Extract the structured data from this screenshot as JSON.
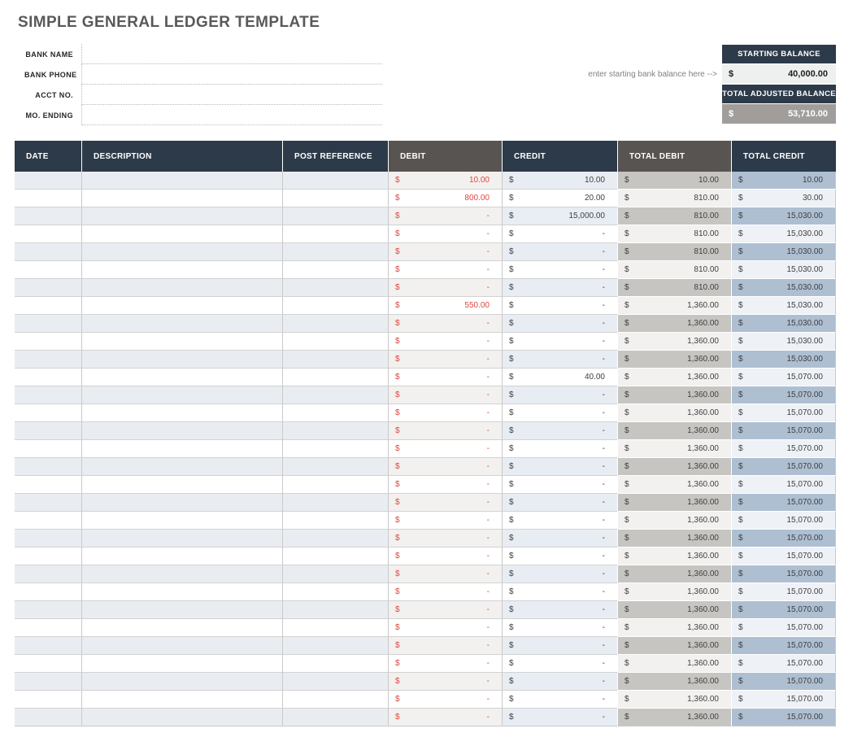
{
  "page": {
    "title": "SIMPLE GENERAL LEDGER TEMPLATE"
  },
  "account_form": {
    "fields": [
      {
        "label": "BANK NAME",
        "value": ""
      },
      {
        "label": "BANK PHONE",
        "value": ""
      },
      {
        "label": "ACCT NO.",
        "value": ""
      },
      {
        "label": "MO. ENDING",
        "value": ""
      }
    ]
  },
  "balance_panel": {
    "hint": "enter starting bank balance here -->",
    "starting": {
      "label": "STARTING BALANCE",
      "currency": "$",
      "value": "40,000.00"
    },
    "adjusted": {
      "label": "TOTAL ADJUSTED BALANCE",
      "currency": "$",
      "value": "53,710.00"
    }
  },
  "ledger": {
    "columns": [
      "DATE",
      "DESCRIPTION",
      "POST REFERENCE",
      "DEBIT",
      "CREDIT",
      "TOTAL DEBIT",
      "TOTAL CREDIT"
    ],
    "currency": "$",
    "rows": [
      {
        "date": "",
        "description": "",
        "post_reference": "",
        "debit": "10.00",
        "credit": "10.00",
        "total_debit": "10.00",
        "total_credit": "10.00"
      },
      {
        "date": "",
        "description": "",
        "post_reference": "",
        "debit": "800.00",
        "credit": "20.00",
        "total_debit": "810.00",
        "total_credit": "30.00"
      },
      {
        "date": "",
        "description": "",
        "post_reference": "",
        "debit": "-",
        "credit": "15,000.00",
        "total_debit": "810.00",
        "total_credit": "15,030.00"
      },
      {
        "date": "",
        "description": "",
        "post_reference": "",
        "debit": "-",
        "credit": "-",
        "total_debit": "810.00",
        "total_credit": "15,030.00"
      },
      {
        "date": "",
        "description": "",
        "post_reference": "",
        "debit": "-",
        "credit": "-",
        "total_debit": "810.00",
        "total_credit": "15,030.00"
      },
      {
        "date": "",
        "description": "",
        "post_reference": "",
        "debit": "-",
        "credit": "-",
        "total_debit": "810.00",
        "total_credit": "15,030.00"
      },
      {
        "date": "",
        "description": "",
        "post_reference": "",
        "debit": "-",
        "credit": "-",
        "total_debit": "810.00",
        "total_credit": "15,030.00"
      },
      {
        "date": "",
        "description": "",
        "post_reference": "",
        "debit": "550.00",
        "credit": "-",
        "total_debit": "1,360.00",
        "total_credit": "15,030.00"
      },
      {
        "date": "",
        "description": "",
        "post_reference": "",
        "debit": "-",
        "credit": "-",
        "total_debit": "1,360.00",
        "total_credit": "15,030.00"
      },
      {
        "date": "",
        "description": "",
        "post_reference": "",
        "debit": "-",
        "credit": "-",
        "total_debit": "1,360.00",
        "total_credit": "15,030.00"
      },
      {
        "date": "",
        "description": "",
        "post_reference": "",
        "debit": "-",
        "credit": "-",
        "total_debit": "1,360.00",
        "total_credit": "15,030.00"
      },
      {
        "date": "",
        "description": "",
        "post_reference": "",
        "debit": "-",
        "credit": "40.00",
        "total_debit": "1,360.00",
        "total_credit": "15,070.00"
      },
      {
        "date": "",
        "description": "",
        "post_reference": "",
        "debit": "-",
        "credit": "-",
        "total_debit": "1,360.00",
        "total_credit": "15,070.00"
      },
      {
        "date": "",
        "description": "",
        "post_reference": "",
        "debit": "-",
        "credit": "-",
        "total_debit": "1,360.00",
        "total_credit": "15,070.00"
      },
      {
        "date": "",
        "description": "",
        "post_reference": "",
        "debit": "-",
        "credit": "-",
        "total_debit": "1,360.00",
        "total_credit": "15,070.00"
      },
      {
        "date": "",
        "description": "",
        "post_reference": "",
        "debit": "-",
        "credit": "-",
        "total_debit": "1,360.00",
        "total_credit": "15,070.00"
      },
      {
        "date": "",
        "description": "",
        "post_reference": "",
        "debit": "-",
        "credit": "-",
        "total_debit": "1,360.00",
        "total_credit": "15,070.00"
      },
      {
        "date": "",
        "description": "",
        "post_reference": "",
        "debit": "-",
        "credit": "-",
        "total_debit": "1,360.00",
        "total_credit": "15,070.00"
      },
      {
        "date": "",
        "description": "",
        "post_reference": "",
        "debit": "-",
        "credit": "-",
        "total_debit": "1,360.00",
        "total_credit": "15,070.00"
      },
      {
        "date": "",
        "description": "",
        "post_reference": "",
        "debit": "-",
        "credit": "-",
        "total_debit": "1,360.00",
        "total_credit": "15,070.00"
      },
      {
        "date": "",
        "description": "",
        "post_reference": "",
        "debit": "-",
        "credit": "-",
        "total_debit": "1,360.00",
        "total_credit": "15,070.00"
      },
      {
        "date": "",
        "description": "",
        "post_reference": "",
        "debit": "-",
        "credit": "-",
        "total_debit": "1,360.00",
        "total_credit": "15,070.00"
      },
      {
        "date": "",
        "description": "",
        "post_reference": "",
        "debit": "-",
        "credit": "-",
        "total_debit": "1,360.00",
        "total_credit": "15,070.00"
      },
      {
        "date": "",
        "description": "",
        "post_reference": "",
        "debit": "-",
        "credit": "-",
        "total_debit": "1,360.00",
        "total_credit": "15,070.00"
      },
      {
        "date": "",
        "description": "",
        "post_reference": "",
        "debit": "-",
        "credit": "-",
        "total_debit": "1,360.00",
        "total_credit": "15,070.00"
      },
      {
        "date": "",
        "description": "",
        "post_reference": "",
        "debit": "-",
        "credit": "-",
        "total_debit": "1,360.00",
        "total_credit": "15,070.00"
      },
      {
        "date": "",
        "description": "",
        "post_reference": "",
        "debit": "-",
        "credit": "-",
        "total_debit": "1,360.00",
        "total_credit": "15,070.00"
      },
      {
        "date": "",
        "description": "",
        "post_reference": "",
        "debit": "-",
        "credit": "-",
        "total_debit": "1,360.00",
        "total_credit": "15,070.00"
      },
      {
        "date": "",
        "description": "",
        "post_reference": "",
        "debit": "-",
        "credit": "-",
        "total_debit": "1,360.00",
        "total_credit": "15,070.00"
      },
      {
        "date": "",
        "description": "",
        "post_reference": "",
        "debit": "-",
        "credit": "-",
        "total_debit": "1,360.00",
        "total_credit": "15,070.00"
      },
      {
        "date": "",
        "description": "",
        "post_reference": "",
        "debit": "-",
        "credit": "-",
        "total_debit": "1,360.00",
        "total_credit": "15,070.00"
      }
    ]
  },
  "colors": {
    "header_navy": "#2d3a49",
    "header_gray": "#585451",
    "debit_red": "#e2463d",
    "stripe_left": "#e9edf2",
    "stripe_total_debit": "#c7c5c1",
    "stripe_total_credit": "#aebfd2",
    "adjusted_balance_bg": "#a09d9b",
    "starting_balance_bg": "#eef0ef",
    "title_gray": "#595959"
  }
}
